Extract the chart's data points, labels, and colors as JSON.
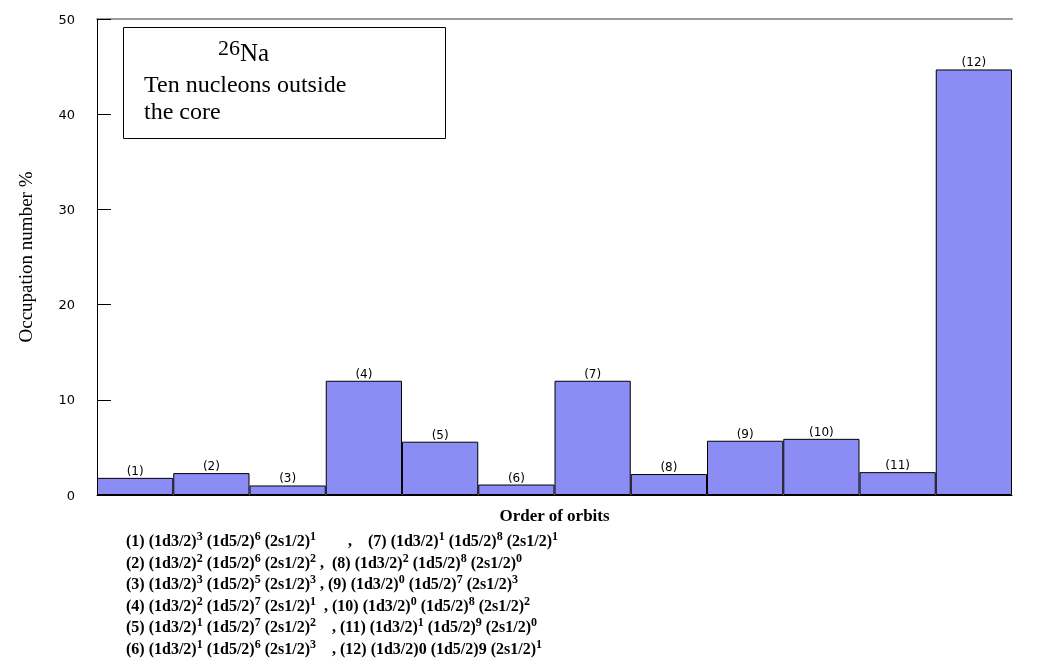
{
  "chart_data": {
    "type": "bar",
    "title": "$^{26}$Na",
    "subtitle": "Ten nucleons outside the core",
    "xlabel": "Order of orbits",
    "ylabel": "Occupation number %",
    "categories": [
      "(1)",
      "(2)",
      "(3)",
      "(4)",
      "(5)",
      "(6)",
      "(7)",
      "(8)",
      "(9)",
      "(10)",
      "(11)",
      "(12)"
    ],
    "values": [
      1.8,
      2.3,
      1.0,
      12.0,
      5.6,
      1.1,
      12.0,
      2.2,
      5.7,
      5.9,
      2.4,
      44.7
    ],
    "color": "#8c8cf5",
    "ylim": [
      0,
      50
    ],
    "yticks": [
      0,
      10,
      20,
      30,
      40,
      50
    ],
    "grid": false,
    "annotations": [
      "(1) (1d3/2)$^{3}$ (1d5/2)$^{6}$ (2s1/2)$^{1}$        ,    (7) (1d3/2)$^{1}$ (1d5/2)$^{8}$ (2s1/2)$^{1}$",
      "(2) (1d3/2)$^{2}$ (1d5/2)$^{6}$ (2s1/2)$^{2}$ ,  (8) (1d3/2)$^{2}$ (1d5/2)$^{8}$ (2s1/2)$^{0}$",
      "(3) (1d3/2)$^{3}$ (1d5/2)$^{5}$ (2s1/2)$^{3}$ , (9) (1d3/2)$^{0}$ (1d5/2)$^{7}$ (2s1/2)$^{3}$",
      "(4) (1d3/2)$^{2}$ (1d5/2)$^{7}$ (2s1/2)$^{1}$  , (10) (1d3/2)$^{0}$ (1d5/2)$^{8}$ (2s1/2)$^{2}$",
      "(5) (1d3/2)$^{1}$ (1d5/2)$^{7}$ (2s1/2)$^{2}$    , (11) (1d3/2)$^{1}$ (1d5/2)$^{9}$ (2s1/2)$^{0}$",
      "(6) (1d3/2)$^{1}$ (1d5/2)$^{6}$ (2s1/2)$^{3}$    , (12) (1d3/2)0 (1d5/2)9 (2s1/2)$^{1}$"
    ]
  }
}
